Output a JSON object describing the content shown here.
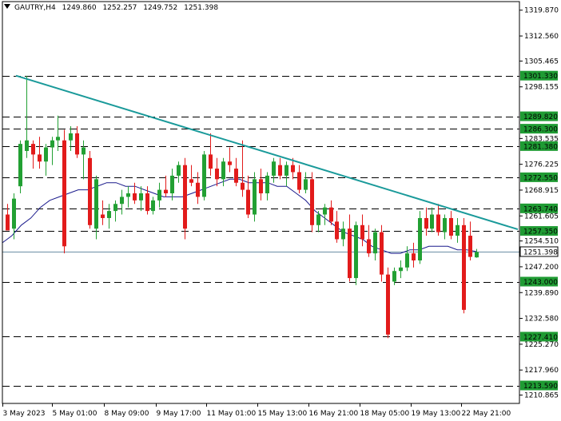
{
  "header": {
    "symbol": "GAUTRY,H4",
    "open": "1249.860",
    "high": "1252.257",
    "low": "1249.752",
    "close": "1251.398",
    "dropdown_icon": "triangle-down-icon"
  },
  "colors": {
    "bull": "#22a033",
    "bear": "#e21b1b",
    "trendline": "#1a9a9a",
    "ma": "#1a1a8c",
    "level_label_bg": "#1f9b33",
    "price_label_bg": "#ffffff"
  },
  "chart_data": {
    "type": "candlestick",
    "y_axis_ticks": [
      "1319.870",
      "1312.560",
      "1305.465",
      "1298.155",
      "1283.535",
      "1276.225",
      "1268.915",
      "1261.605",
      "1254.510",
      "1247.200",
      "1239.890",
      "1232.580",
      "1225.270",
      "1217.960",
      "1210.865"
    ],
    "x_axis_ticks": [
      "3 May 2023",
      "5 May 01:00",
      "8 May 09:00",
      "9 May 17:00",
      "11 May 01:00",
      "15 May 13:00",
      "16 May 21:00",
      "18 May 05:00",
      "19 May 13:00",
      "22 May 21:00"
    ],
    "levels": [
      "1301.330",
      "1289.820",
      "1286.300",
      "1281.380",
      "1272.550",
      "1263.740",
      "1257.350",
      "1243.000",
      "1227.410",
      "1213.590"
    ],
    "current_price": "1251.398",
    "candles": [
      [
        1262,
        1265,
        1258,
        1257.5
      ],
      [
        1258,
        1268,
        1255,
        1266.5
      ],
      [
        1270,
        1283,
        1268,
        1282
      ],
      [
        1280,
        1301.3,
        1278,
        1283
      ],
      [
        1282,
        1283,
        1275,
        1279
      ],
      [
        1279,
        1284,
        1275,
        1277
      ],
      [
        1277,
        1282,
        1273,
        1281
      ],
      [
        1281,
        1284,
        1276,
        1283
      ],
      [
        1283,
        1290,
        1280,
        1284
      ],
      [
        1283,
        1286,
        1251,
        1253
      ],
      [
        1283,
        1287,
        1280,
        1285
      ],
      [
        1285,
        1287,
        1278,
        1279
      ],
      [
        1279,
        1283,
        1272,
        1281
      ],
      [
        1278,
        1280,
        1258,
        1259
      ],
      [
        1258,
        1273,
        1255,
        1272
      ],
      [
        1262,
        1266,
        1259,
        1261
      ],
      [
        1261,
        1265,
        1258,
        1263
      ],
      [
        1263,
        1266,
        1260,
        1265
      ],
      [
        1265,
        1269,
        1262,
        1267
      ],
      [
        1267,
        1270,
        1264,
        1268
      ],
      [
        1268,
        1271,
        1265,
        1266
      ],
      [
        1266,
        1270,
        1263,
        1268
      ],
      [
        1268,
        1270,
        1262,
        1263
      ],
      [
        1263,
        1267,
        1262,
        1266
      ],
      [
        1266,
        1271,
        1264,
        1269
      ],
      [
        1269,
        1273,
        1267,
        1268
      ],
      [
        1268,
        1275,
        1266,
        1273
      ],
      [
        1273,
        1277,
        1271,
        1276
      ],
      [
        1276,
        1278,
        1255,
        1258
      ],
      [
        1272,
        1276,
        1270,
        1271
      ],
      [
        1271,
        1274,
        1265,
        1267
      ],
      [
        1267,
        1280,
        1266,
        1279
      ],
      [
        1279,
        1285,
        1273,
        1275
      ],
      [
        1275,
        1278,
        1270,
        1272
      ],
      [
        1272,
        1278,
        1270,
        1277
      ],
      [
        1277,
        1281,
        1274,
        1276
      ],
      [
        1275,
        1278,
        1270,
        1271
      ],
      [
        1271,
        1283,
        1267,
        1269
      ],
      [
        1269,
        1273,
        1261,
        1262
      ],
      [
        1262,
        1274,
        1260,
        1272
      ],
      [
        1272,
        1275,
        1266,
        1268
      ],
      [
        1268,
        1274,
        1266,
        1273
      ],
      [
        1273,
        1278,
        1271,
        1277
      ],
      [
        1276,
        1278,
        1272,
        1273
      ],
      [
        1273,
        1277,
        1270,
        1276
      ],
      [
        1276,
        1278,
        1272,
        1274
      ],
      [
        1274,
        1276,
        1268,
        1269
      ],
      [
        1269,
        1274,
        1268,
        1272
      ],
      [
        1272,
        1274,
        1257,
        1259
      ],
      [
        1259,
        1263,
        1257,
        1262
      ],
      [
        1262,
        1265,
        1259,
        1264
      ],
      [
        1264,
        1266,
        1259,
        1260
      ],
      [
        1260,
        1263,
        1254,
        1255
      ],
      [
        1255,
        1260,
        1253,
        1258
      ],
      [
        1258,
        1262,
        1243,
        1244
      ],
      [
        1244,
        1260,
        1242,
        1259
      ],
      [
        1259,
        1262,
        1253,
        1255
      ],
      [
        1255,
        1259,
        1250,
        1251
      ],
      [
        1251,
        1258,
        1249,
        1257
      ],
      [
        1257,
        1259,
        1243,
        1245
      ],
      [
        1245,
        1247,
        1227,
        1228
      ],
      [
        1243,
        1247,
        1242,
        1246
      ],
      [
        1246,
        1249,
        1244,
        1247
      ],
      [
        1247,
        1253,
        1246,
        1251
      ],
      [
        1251,
        1254,
        1247,
        1249
      ],
      [
        1249,
        1263,
        1248,
        1261
      ],
      [
        1261,
        1264,
        1256,
        1258
      ],
      [
        1258,
        1264,
        1257,
        1262
      ],
      [
        1262,
        1265,
        1256,
        1257
      ],
      [
        1257,
        1262,
        1255,
        1261
      ],
      [
        1261,
        1263,
        1255,
        1256
      ],
      [
        1256,
        1261,
        1254,
        1259
      ],
      [
        1259,
        1261,
        1234,
        1235
      ],
      [
        1256,
        1260,
        1249,
        1250
      ],
      [
        1249.86,
        1252.257,
        1249.752,
        1251.398
      ]
    ],
    "moving_average": [
      1254,
      1256,
      1259,
      1261,
      1264,
      1266,
      1267,
      1268,
      1269,
      1269,
      1270,
      1271,
      1271,
      1270,
      1270,
      1269,
      1268,
      1267,
      1267,
      1267,
      1268,
      1269,
      1270,
      1271,
      1272,
      1272,
      1271,
      1271,
      1271,
      1270,
      1270,
      1268,
      1266,
      1263,
      1261,
      1259,
      1257,
      1256,
      1255,
      1253,
      1252,
      1251,
      1251,
      1252,
      1252,
      1253,
      1253,
      1253,
      1252,
      1252,
      1251.5
    ]
  }
}
